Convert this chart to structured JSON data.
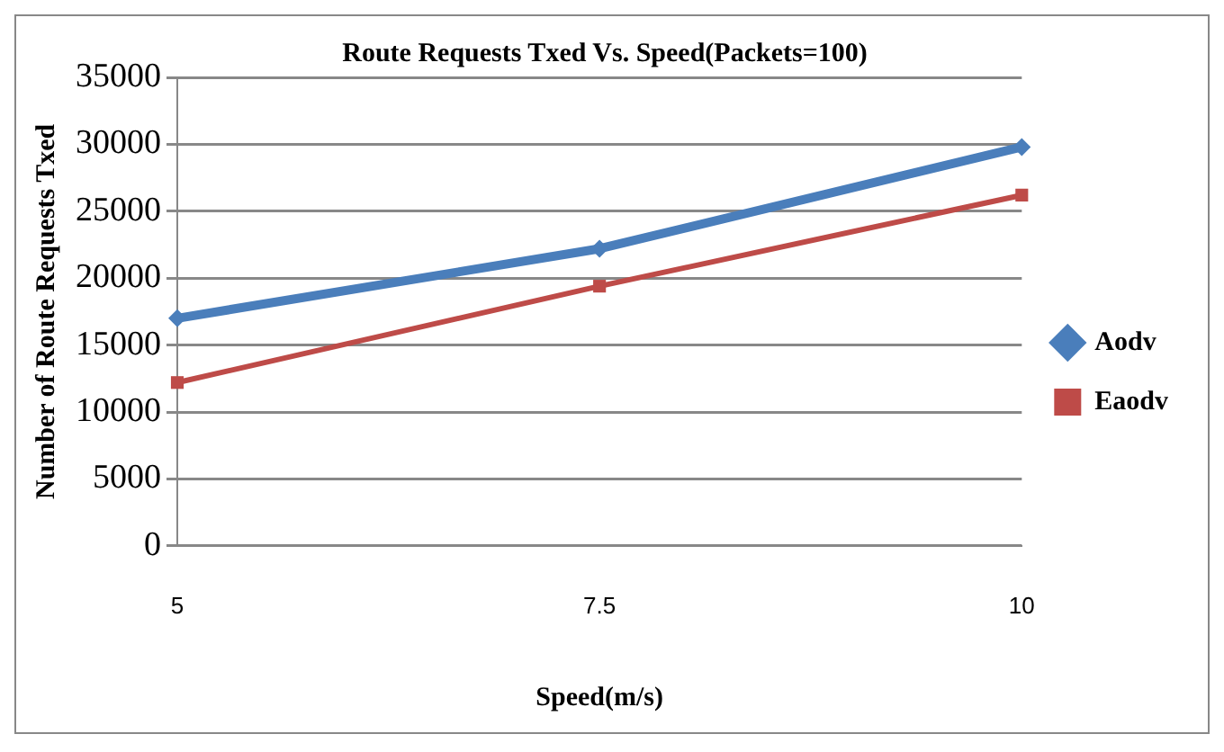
{
  "chart_data": {
    "type": "line",
    "title": "Route Requests Txed Vs. Speed(Packets=100)",
    "xlabel": "Speed(m/s)",
    "ylabel": "Number of Route Requests Txed",
    "categories": [
      "5",
      "7.5",
      "10"
    ],
    "series": [
      {
        "name": "Aodv",
        "color": "#4a7ebb",
        "values": [
          17000,
          22200,
          29800
        ],
        "marker": "diamond"
      },
      {
        "name": "Eaodv",
        "color": "#be4b48",
        "values": [
          12200,
          19400,
          26200
        ],
        "marker": "square"
      }
    ],
    "ylim": [
      0,
      35000
    ],
    "yticks": [
      0,
      5000,
      10000,
      15000,
      20000,
      25000,
      30000,
      35000
    ],
    "grid": "y",
    "legend": "right",
    "line_style": "solid"
  }
}
